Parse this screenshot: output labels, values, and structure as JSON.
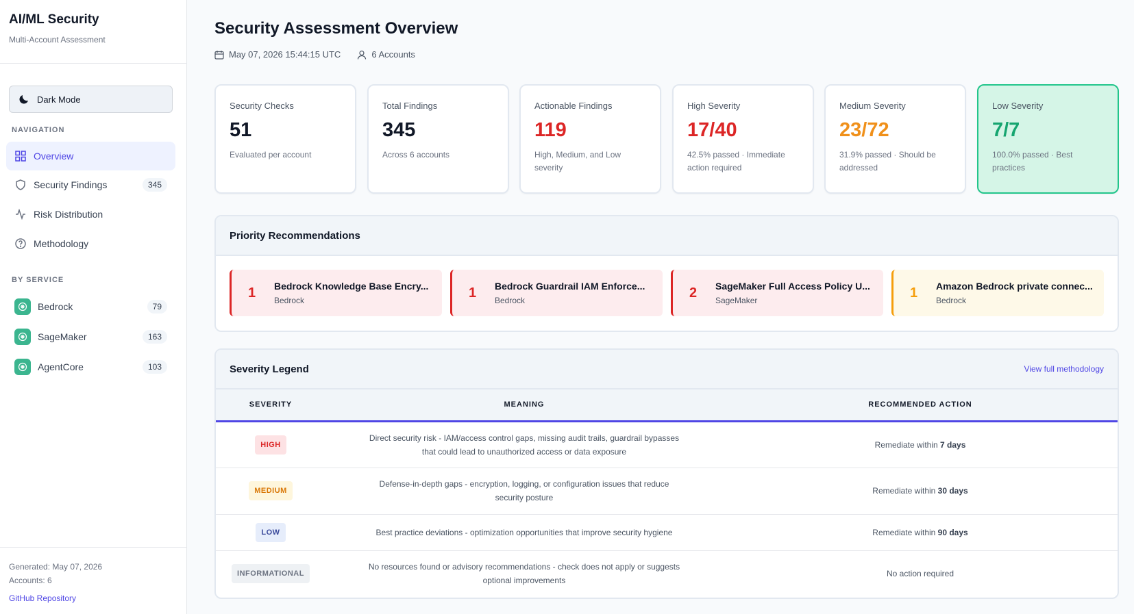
{
  "sidebar": {
    "title": "AI/ML Security",
    "subtitle": "Multi-Account Assessment",
    "theme_button": "Dark Mode",
    "nav_label": "NAVIGATION",
    "nav": [
      {
        "label": "Overview",
        "icon": "grid-icon",
        "active": true
      },
      {
        "label": "Security Findings",
        "icon": "shield-icon",
        "count": "345"
      },
      {
        "label": "Risk Distribution",
        "icon": "activity-icon"
      },
      {
        "label": "Methodology",
        "icon": "help-circle-icon"
      }
    ],
    "service_label": "BY SERVICE",
    "services": [
      {
        "label": "Bedrock",
        "count": "79"
      },
      {
        "label": "SageMaker",
        "count": "163"
      },
      {
        "label": "AgentCore",
        "count": "103"
      }
    ],
    "footer": {
      "generated": "Generated: May 07, 2026",
      "accounts": "Accounts: 6",
      "repo_link": "GitHub Repository"
    }
  },
  "header": {
    "title": "Security Assessment Overview",
    "timestamp": "May 07, 2026 15:44:15 UTC",
    "accounts": "6 Accounts"
  },
  "cards": [
    {
      "label": "Security Checks",
      "value": "51",
      "sub": "Evaluated per account",
      "color": "#111827"
    },
    {
      "label": "Total Findings",
      "value": "345",
      "sub": "Across 6 accounts",
      "color": "#111827"
    },
    {
      "label": "Actionable Findings",
      "value": "119",
      "sub": "High, Medium, and Low severity",
      "color": "#dc2626"
    },
    {
      "label": "High Severity",
      "value": "17/40",
      "sub": "42.5% passed · Immediate action required",
      "color": "#dc2626"
    },
    {
      "label": "Medium Severity",
      "value": "23/72",
      "sub": "31.9% passed · Should be addressed",
      "color": "#f0901a"
    },
    {
      "label": "Low Severity",
      "value": "7/7",
      "sub": "100.0% passed · Best practices",
      "color": "#16a570"
    }
  ],
  "priority": {
    "title": "Priority Recommendations",
    "items": [
      {
        "num": "1",
        "title": "Bedrock Knowledge Base Encry...",
        "service": "Bedrock",
        "level": "red"
      },
      {
        "num": "1",
        "title": "Bedrock Guardrail IAM Enforce...",
        "service": "Bedrock",
        "level": "red"
      },
      {
        "num": "2",
        "title": "SageMaker Full Access Policy U...",
        "service": "SageMaker",
        "level": "red"
      },
      {
        "num": "1",
        "title": "Amazon Bedrock private connec...",
        "service": "Bedrock",
        "level": "amber"
      }
    ]
  },
  "legend": {
    "title": "Severity Legend",
    "link": "View full methodology",
    "headers": [
      "SEVERITY",
      "MEANING",
      "RECOMMENDED ACTION"
    ],
    "rows": [
      {
        "badge": "HIGH",
        "cls": "b-high",
        "meaning": "Direct security risk - IAM/access control gaps, missing audit trails, guardrail bypasses that could lead to unauthorized access or data exposure",
        "action_prefix": "Remediate within ",
        "action_bold": "7 days"
      },
      {
        "badge": "MEDIUM",
        "cls": "b-med",
        "meaning": "Defense-in-depth gaps - encryption, logging, or configuration issues that reduce security posture",
        "action_prefix": "Remediate within ",
        "action_bold": "30 days"
      },
      {
        "badge": "LOW",
        "cls": "b-low",
        "meaning": "Best practice deviations - optimization opportunities that improve security hygiene",
        "action_prefix": "Remediate within ",
        "action_bold": "90 days"
      },
      {
        "badge": "INFORMATIONAL",
        "cls": "b-info",
        "meaning": "No resources found or advisory recommendations - check does not apply or suggests optional improvements",
        "action_prefix": "No action required",
        "action_bold": ""
      }
    ]
  }
}
